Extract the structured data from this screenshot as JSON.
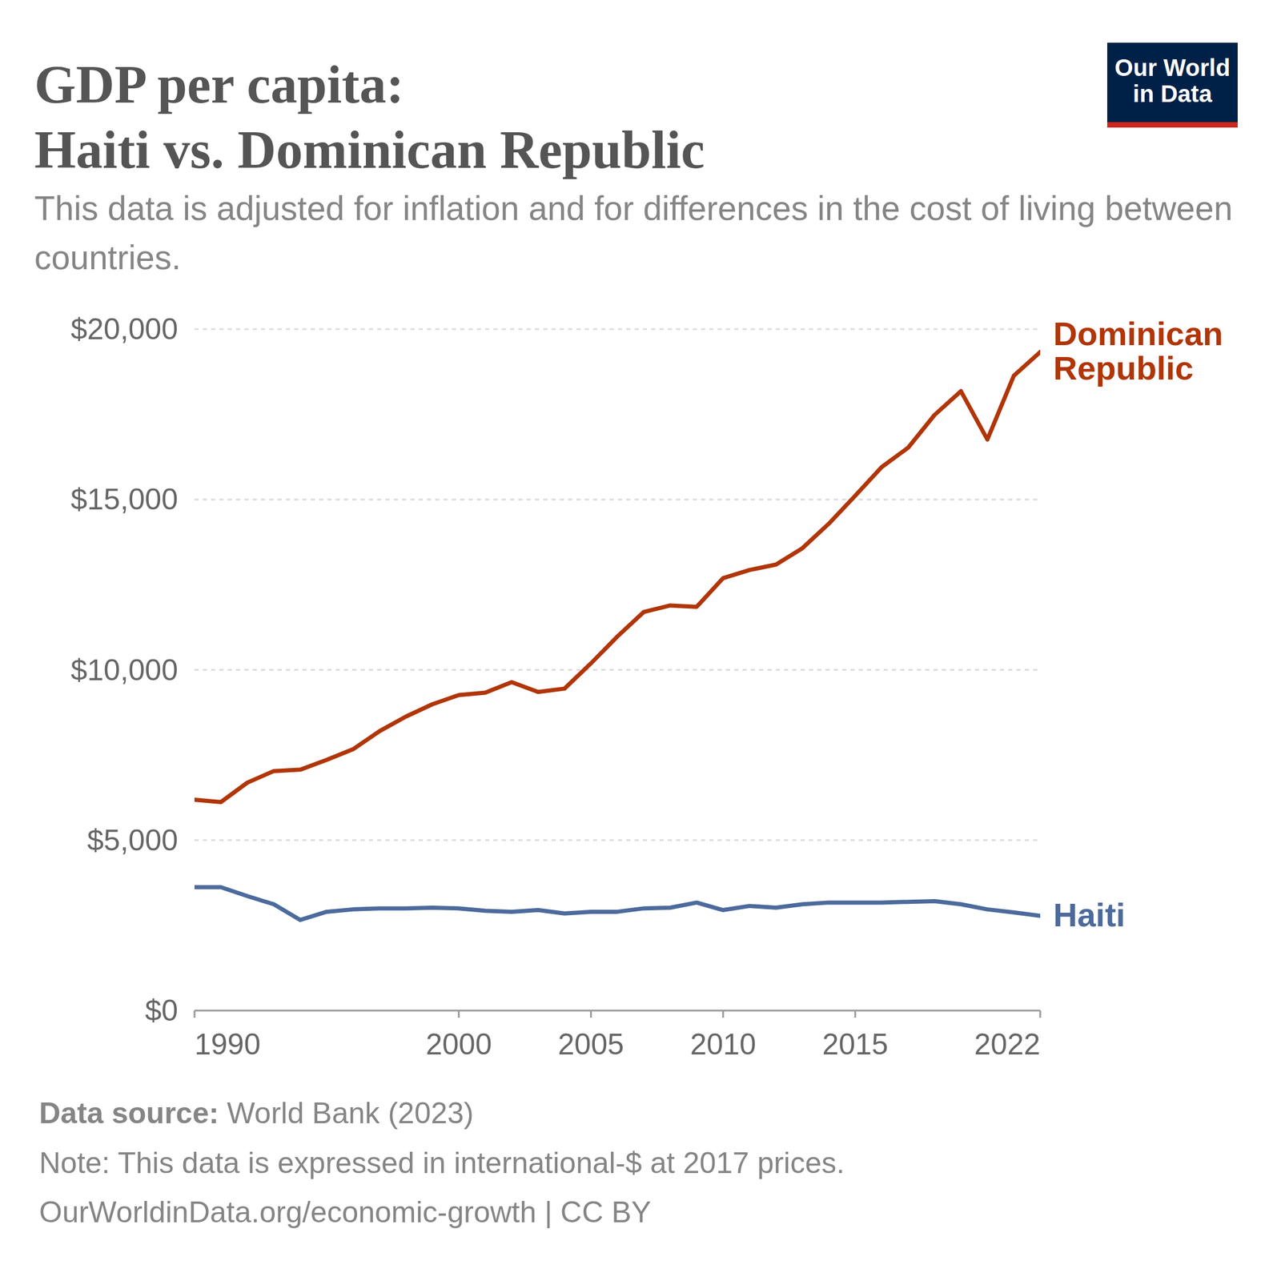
{
  "chart_data": {
    "type": "line",
    "title": "GDP per capita:\nHaiti vs. Dominican Republic",
    "subtitle": "This data is adjusted for inflation and for differences in the cost of living between countries.",
    "source_label": "Data source:",
    "source": "World Bank (2023)",
    "note": "Note: This data is expressed in international-$ at 2017 prices.",
    "url": "OurWorldinData.org/economic-growth | CC BY",
    "logo": "Our World\nin Data",
    "x": [
      1990,
      1991,
      1992,
      1993,
      1994,
      1995,
      1996,
      1997,
      1998,
      1999,
      2000,
      2001,
      2002,
      2003,
      2004,
      2005,
      2006,
      2007,
      2008,
      2009,
      2010,
      2011,
      2012,
      2013,
      2014,
      2015,
      2016,
      2017,
      2018,
      2019,
      2020,
      2021,
      2022
    ],
    "series": [
      {
        "name": "Dominican Republic",
        "color": "#b13507",
        "values": [
          6190,
          6120,
          6690,
          7030,
          7070,
          7360,
          7670,
          8200,
          8630,
          8990,
          9260,
          9330,
          9640,
          9350,
          9450,
          10190,
          10980,
          11700,
          11890,
          11850,
          12690,
          12930,
          13090,
          13570,
          14290,
          15110,
          15950,
          16520,
          17480,
          18180,
          16760,
          18630,
          19330
        ]
      },
      {
        "name": "Haiti",
        "color": "#4c6a9c",
        "values": [
          3620,
          3620,
          3360,
          3120,
          2660,
          2900,
          2970,
          3000,
          3000,
          3020,
          3000,
          2930,
          2900,
          2950,
          2850,
          2900,
          2900,
          3000,
          3020,
          3170,
          2950,
          3070,
          3020,
          3120,
          3170,
          3170,
          3170,
          3190,
          3210,
          3120,
          2970,
          2880,
          2780
        ]
      }
    ],
    "xlim": [
      1990,
      2022
    ],
    "xticks": [
      1990,
      2000,
      2005,
      2010,
      2015,
      2022
    ],
    "ylim": [
      0,
      20000
    ],
    "yticks": [
      {
        "value": 0,
        "label": "$0"
      },
      {
        "value": 5000,
        "label": "$5,000"
      },
      {
        "value": 10000,
        "label": "$10,000"
      },
      {
        "value": 15000,
        "label": "$15,000"
      },
      {
        "value": 20000,
        "label": "$20,000"
      }
    ],
    "grid": true
  }
}
